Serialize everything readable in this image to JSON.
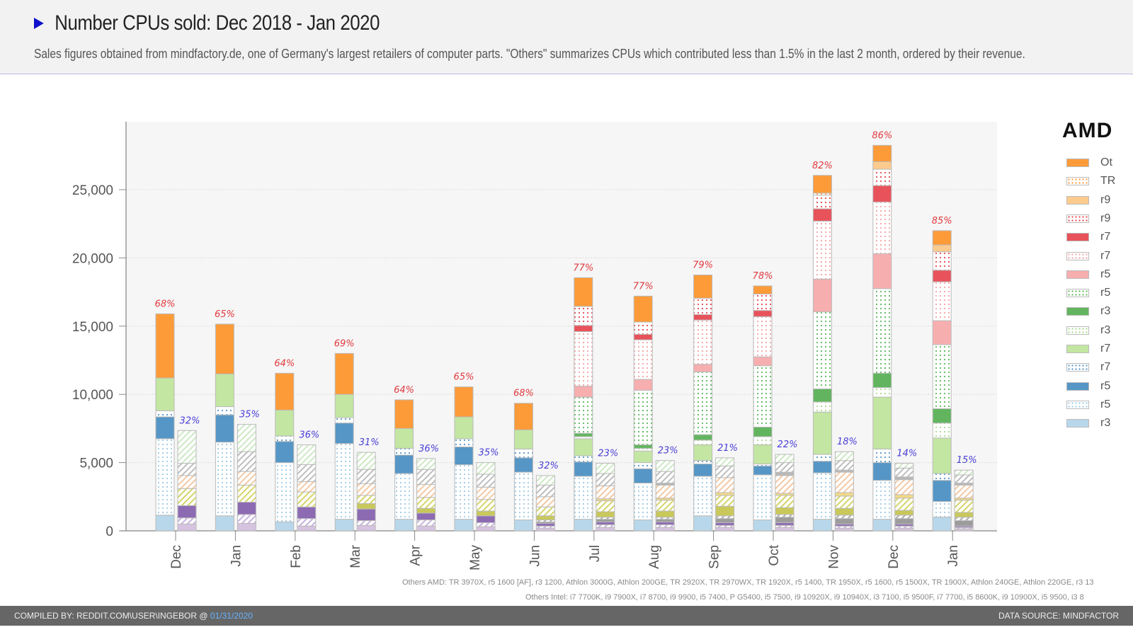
{
  "header": {
    "title": "Number CPUs sold: Dec 2018 - Jan 2020",
    "subtitle": "Sales figures obtained from mindfactory.de, one of Germany's largest retailers of computer parts. \"Others\" summarizes CPUs which contributed less than 1.5% in the last 2 month, ordered by their revenue."
  },
  "legend": {
    "brand": "AMD",
    "items": [
      {
        "label": "Ot",
        "color": "#fd9b38",
        "pattern": "solid"
      },
      {
        "label": "TR",
        "color": "#fd9b38",
        "pattern": "dots"
      },
      {
        "label": "r9",
        "color": "#fdcb8e",
        "pattern": "solid"
      },
      {
        "label": "r9",
        "color": "#e6464e",
        "pattern": "dots"
      },
      {
        "label": "r7",
        "color": "#e8525a",
        "pattern": "solid"
      },
      {
        "label": "r7",
        "color": "#f4a3a6",
        "pattern": "dots"
      },
      {
        "label": "r5",
        "color": "#f7aeaf",
        "pattern": "solid"
      },
      {
        "label": "r5",
        "color": "#5cb85c",
        "pattern": "dots"
      },
      {
        "label": "r3",
        "color": "#62b55e",
        "pattern": "solid"
      },
      {
        "label": "r3",
        "color": "#a8d98f",
        "pattern": "dots"
      },
      {
        "label": "r7",
        "color": "#c3e6a2",
        "pattern": "solid"
      },
      {
        "label": "r7",
        "color": "#5596c6",
        "pattern": "dots"
      },
      {
        "label": "r5",
        "color": "#5596c6",
        "pattern": "solid"
      },
      {
        "label": "r5",
        "color": "#9ecae6",
        "pattern": "dots"
      },
      {
        "label": "r3",
        "color": "#b8d7ea",
        "pattern": "solid"
      }
    ]
  },
  "notes": {
    "others_amd": "Others AMD: TR 3970X, r5 1600 [AF], r3 1200, Athlon 3000G, Athlon 200GE, TR 2920X, TR 2970WX, TR 1920X, r5 1400, TR 1950X, r5 1600, r5 1500X, TR 1900X, Athlon 240GE, Athlon 220GE, r3 13",
    "others_intel": "Others Intel: i7 7700K, i9 7900X, i7 8700, i9 9900, i5 7400, P G5400, i5 7500, i9 10920X, i9 10940X, i3 7100, i5 9500F, i7 7700, i5 8600K, i9 10900X, i5 9500, i3 8"
  },
  "footer": {
    "compiled_by": "COMPILED BY: REDDIT.COM\\USER\\INGEBOR @ ",
    "date": "01/31/2020",
    "data_source": "DATA SOURCE: MINDFACTOR"
  },
  "chart_data": {
    "type": "bar",
    "stacked": true,
    "grouped": true,
    "title": "Number CPUs sold: Dec 2018 - Jan 2020",
    "xlabel": "",
    "ylabel": "",
    "ylim": [
      0,
      30000
    ],
    "yticks": [
      0,
      5000,
      10000,
      15000,
      20000,
      25000
    ],
    "ytick_labels": [
      "0",
      "5,000",
      "10,000",
      "15,000",
      "20,000",
      "25,000"
    ],
    "grid": true,
    "legend_position": "right",
    "categories": [
      "Dec",
      "Jan",
      "Feb",
      "Mar",
      "Apr",
      "May",
      "Jun",
      "Jul",
      "Aug",
      "Sep",
      "Oct",
      "Nov",
      "Dec",
      "Jan"
    ],
    "amd_share_labels": [
      "68%",
      "65%",
      "64%",
      "69%",
      "64%",
      "65%",
      "68%",
      "77%",
      "77%",
      "79%",
      "78%",
      "82%",
      "86%",
      "85%"
    ],
    "intel_share_labels": [
      "32%",
      "35%",
      "36%",
      "31%",
      "36%",
      "35%",
      "32%",
      "23%",
      "23%",
      "21%",
      "22%",
      "18%",
      "14%",
      "15%"
    ],
    "amd_series": [
      {
        "name": "r3",
        "color": "#b8d7ea",
        "pattern": "solid",
        "values": [
          1150,
          1100,
          650,
          850,
          850,
          850,
          800,
          850,
          800,
          1100,
          800,
          850,
          850,
          1000
        ]
      },
      {
        "name": "r5",
        "color": "#9ecae6",
        "pattern": "dots",
        "values": [
          5600,
          5400,
          4350,
          5550,
          3350,
          4000,
          3500,
          3150,
          2700,
          2900,
          3300,
          3400,
          2850,
          1150
        ]
      },
      {
        "name": "r5",
        "color": "#5596c6",
        "pattern": "solid",
        "values": [
          1600,
          2000,
          1550,
          1500,
          1350,
          1300,
          1050,
          1050,
          1050,
          900,
          650,
          850,
          1300,
          1550
        ]
      },
      {
        "name": "r7",
        "color": "#5596c6",
        "pattern": "dots",
        "values": [
          450,
          600,
          400,
          400,
          500,
          600,
          650,
          450,
          450,
          250,
          150,
          500,
          1000,
          500
        ]
      },
      {
        "name": "r7",
        "color": "#c3e6a2",
        "pattern": "solid",
        "values": [
          2400,
          2400,
          1900,
          1700,
          1450,
          1600,
          1400,
          1250,
          850,
          1150,
          1400,
          3100,
          3800,
          2600
        ]
      },
      {
        "name": "r3",
        "color": "#a8d98f",
        "pattern": "dots",
        "values": [
          0,
          0,
          0,
          0,
          0,
          0,
          0,
          150,
          200,
          350,
          600,
          750,
          700,
          1100
        ]
      },
      {
        "name": "r3",
        "color": "#62b55e",
        "pattern": "solid",
        "values": [
          0,
          0,
          0,
          0,
          0,
          0,
          0,
          250,
          250,
          400,
          700,
          950,
          1050,
          1050
        ]
      },
      {
        "name": "r5",
        "color": "#5cb85c",
        "pattern": "dots",
        "values": [
          0,
          0,
          0,
          0,
          0,
          0,
          0,
          2650,
          4000,
          4600,
          4500,
          5650,
          6200,
          4700
        ]
      },
      {
        "name": "r5",
        "color": "#f7aeaf",
        "pattern": "solid",
        "values": [
          0,
          0,
          0,
          0,
          0,
          0,
          0,
          800,
          800,
          550,
          650,
          2400,
          2550,
          1750
        ]
      },
      {
        "name": "r7",
        "color": "#f4a3a6",
        "pattern": "dots",
        "values": [
          0,
          0,
          0,
          0,
          0,
          0,
          0,
          4000,
          2900,
          3250,
          2950,
          4250,
          3800,
          2850
        ]
      },
      {
        "name": "r7",
        "color": "#e8525a",
        "pattern": "solid",
        "values": [
          0,
          0,
          0,
          0,
          0,
          0,
          0,
          450,
          400,
          400,
          450,
          900,
          1200,
          850
        ]
      },
      {
        "name": "r9",
        "color": "#e6464e",
        "pattern": "dots",
        "values": [
          0,
          0,
          0,
          0,
          0,
          0,
          0,
          1400,
          900,
          1200,
          1200,
          1000,
          1200,
          1350
        ]
      },
      {
        "name": "r9",
        "color": "#fdcb8e",
        "pattern": "solid",
        "values": [
          0,
          0,
          0,
          0,
          0,
          0,
          0,
          0,
          0,
          0,
          0,
          0,
          550,
          500
        ]
      },
      {
        "name": "TR",
        "color": "#fd9b38",
        "pattern": "dots",
        "values": [
          0,
          0,
          0,
          0,
          0,
          0,
          0,
          0,
          0,
          0,
          0,
          150,
          0,
          0
        ]
      },
      {
        "name": "Others",
        "color": "#fd9b38",
        "pattern": "solid",
        "values": [
          4700,
          3650,
          2700,
          3000,
          2100,
          2200,
          1950,
          2100,
          1900,
          1700,
          600,
          1300,
          1200,
          1050
        ]
      }
    ],
    "intel_series": [
      {
        "name": "intel-1",
        "color": "#d6c3e0",
        "pattern": "solid",
        "values": [
          500,
          550,
          350,
          400,
          350,
          300,
          200,
          250,
          250,
          250,
          250,
          200,
          200,
          150
        ]
      },
      {
        "name": "intel-2",
        "color": "#c7b2dd",
        "pattern": "hatch",
        "values": [
          450,
          650,
          550,
          350,
          450,
          300,
          150,
          200,
          200,
          150,
          150,
          150,
          150,
          100
        ]
      },
      {
        "name": "intel-3",
        "color": "#8d6bb3",
        "pattern": "solid",
        "values": [
          900,
          900,
          850,
          850,
          500,
          500,
          200,
          200,
          200,
          200,
          200,
          150,
          150,
          100
        ]
      },
      {
        "name": "intel-4",
        "color": "#9c9c9c",
        "pattern": "solid",
        "values": [
          0,
          0,
          0,
          0,
          0,
          0,
          100,
          200,
          200,
          300,
          400,
          400,
          400,
          400
        ]
      },
      {
        "name": "intel-5",
        "color": "#aaaaaa",
        "pattern": "hatch",
        "values": [
          0,
          0,
          0,
          0,
          0,
          0,
          150,
          150,
          150,
          200,
          200,
          250,
          250,
          250
        ]
      },
      {
        "name": "intel-6",
        "color": "#c9c85a",
        "pattern": "solid",
        "values": [
          0,
          0,
          0,
          400,
          350,
          350,
          300,
          400,
          450,
          700,
          500,
          500,
          350,
          350
        ]
      },
      {
        "name": "intel-7",
        "color": "#d4d46a",
        "pattern": "hatch",
        "values": [
          1250,
          1250,
          1100,
          600,
          800,
          850,
          650,
          800,
          800,
          800,
          900,
          900,
          900,
          900
        ]
      },
      {
        "name": "intel-8",
        "color": "#f2d987",
        "pattern": "solid",
        "values": [
          0,
          0,
          0,
          0,
          0,
          0,
          0,
          150,
          150,
          200,
          150,
          250,
          250,
          150
        ]
      },
      {
        "name": "intel-9",
        "color": "#f2c9a6",
        "pattern": "hatch",
        "values": [
          950,
          1000,
          750,
          850,
          950,
          900,
          750,
          950,
          950,
          1100,
          1300,
          1500,
          1100,
          950
        ]
      },
      {
        "name": "intel-10",
        "color": "#b8b8b8",
        "pattern": "solid",
        "values": [
          0,
          0,
          0,
          0,
          0,
          0,
          0,
          0,
          150,
          0,
          250,
          150,
          200,
          150
        ]
      },
      {
        "name": "intel-11",
        "color": "#bdbdbd",
        "pattern": "hatch",
        "values": [
          900,
          1450,
          1250,
          1050,
          1100,
          950,
          850,
          900,
          850,
          850,
          700,
          700,
          650,
          600
        ]
      },
      {
        "name": "intel-12",
        "color": "#cde8c5",
        "pattern": "hatch",
        "values": [
          2400,
          2000,
          1450,
          1250,
          800,
          850,
          700,
          750,
          800,
          600,
          600,
          650,
          350,
          350
        ]
      }
    ]
  }
}
